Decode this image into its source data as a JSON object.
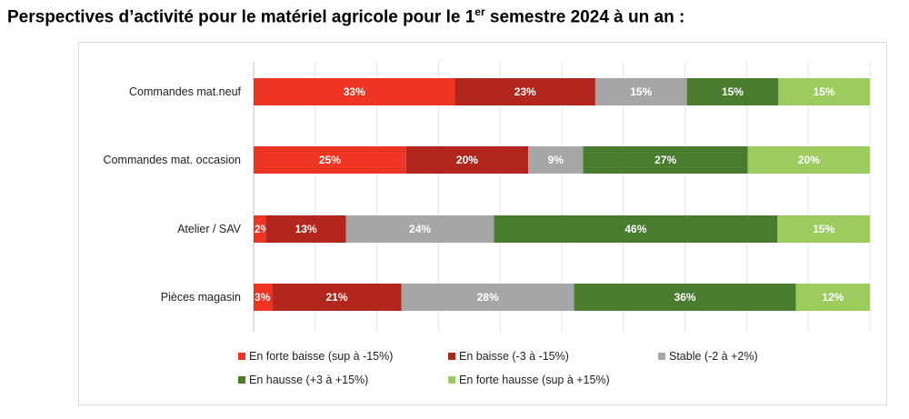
{
  "title": {
    "prefix": "Perspectives d’activité pour le matériel agricole pour le 1",
    "superscript": "er",
    "suffix": " semestre 2024 à un an :"
  },
  "chart_data": {
    "type": "bar",
    "orientation": "horizontal",
    "stacked": "100%",
    "categories": [
      "Commandes mat.neuf",
      "Commandes mat. occasion",
      "Atelier / SAV",
      "Pièces magasin"
    ],
    "series": [
      {
        "name": "En forte baisse (sup à -15%)",
        "color": "#ee3524",
        "values": [
          33,
          25,
          2,
          3
        ]
      },
      {
        "name": "En baisse (-3 à -15%)",
        "color": "#b3261e",
        "values": [
          23,
          20,
          13,
          21
        ]
      },
      {
        "name": "Stable (-2 à +2%)",
        "color": "#a6a6a6",
        "values": [
          15,
          9,
          24,
          28
        ]
      },
      {
        "name": "En hausse (+3 à +15%)",
        "color": "#4a7c2f",
        "values": [
          15,
          27,
          46,
          36
        ]
      },
      {
        "name": "En forte hausse (sup à +15%)",
        "color": "#9ccc5e",
        "values": [
          15,
          20,
          15,
          12
        ]
      }
    ],
    "value_suffix": "%",
    "xlim": [
      0,
      100
    ],
    "grid": "vertical",
    "legend_position": "bottom"
  }
}
